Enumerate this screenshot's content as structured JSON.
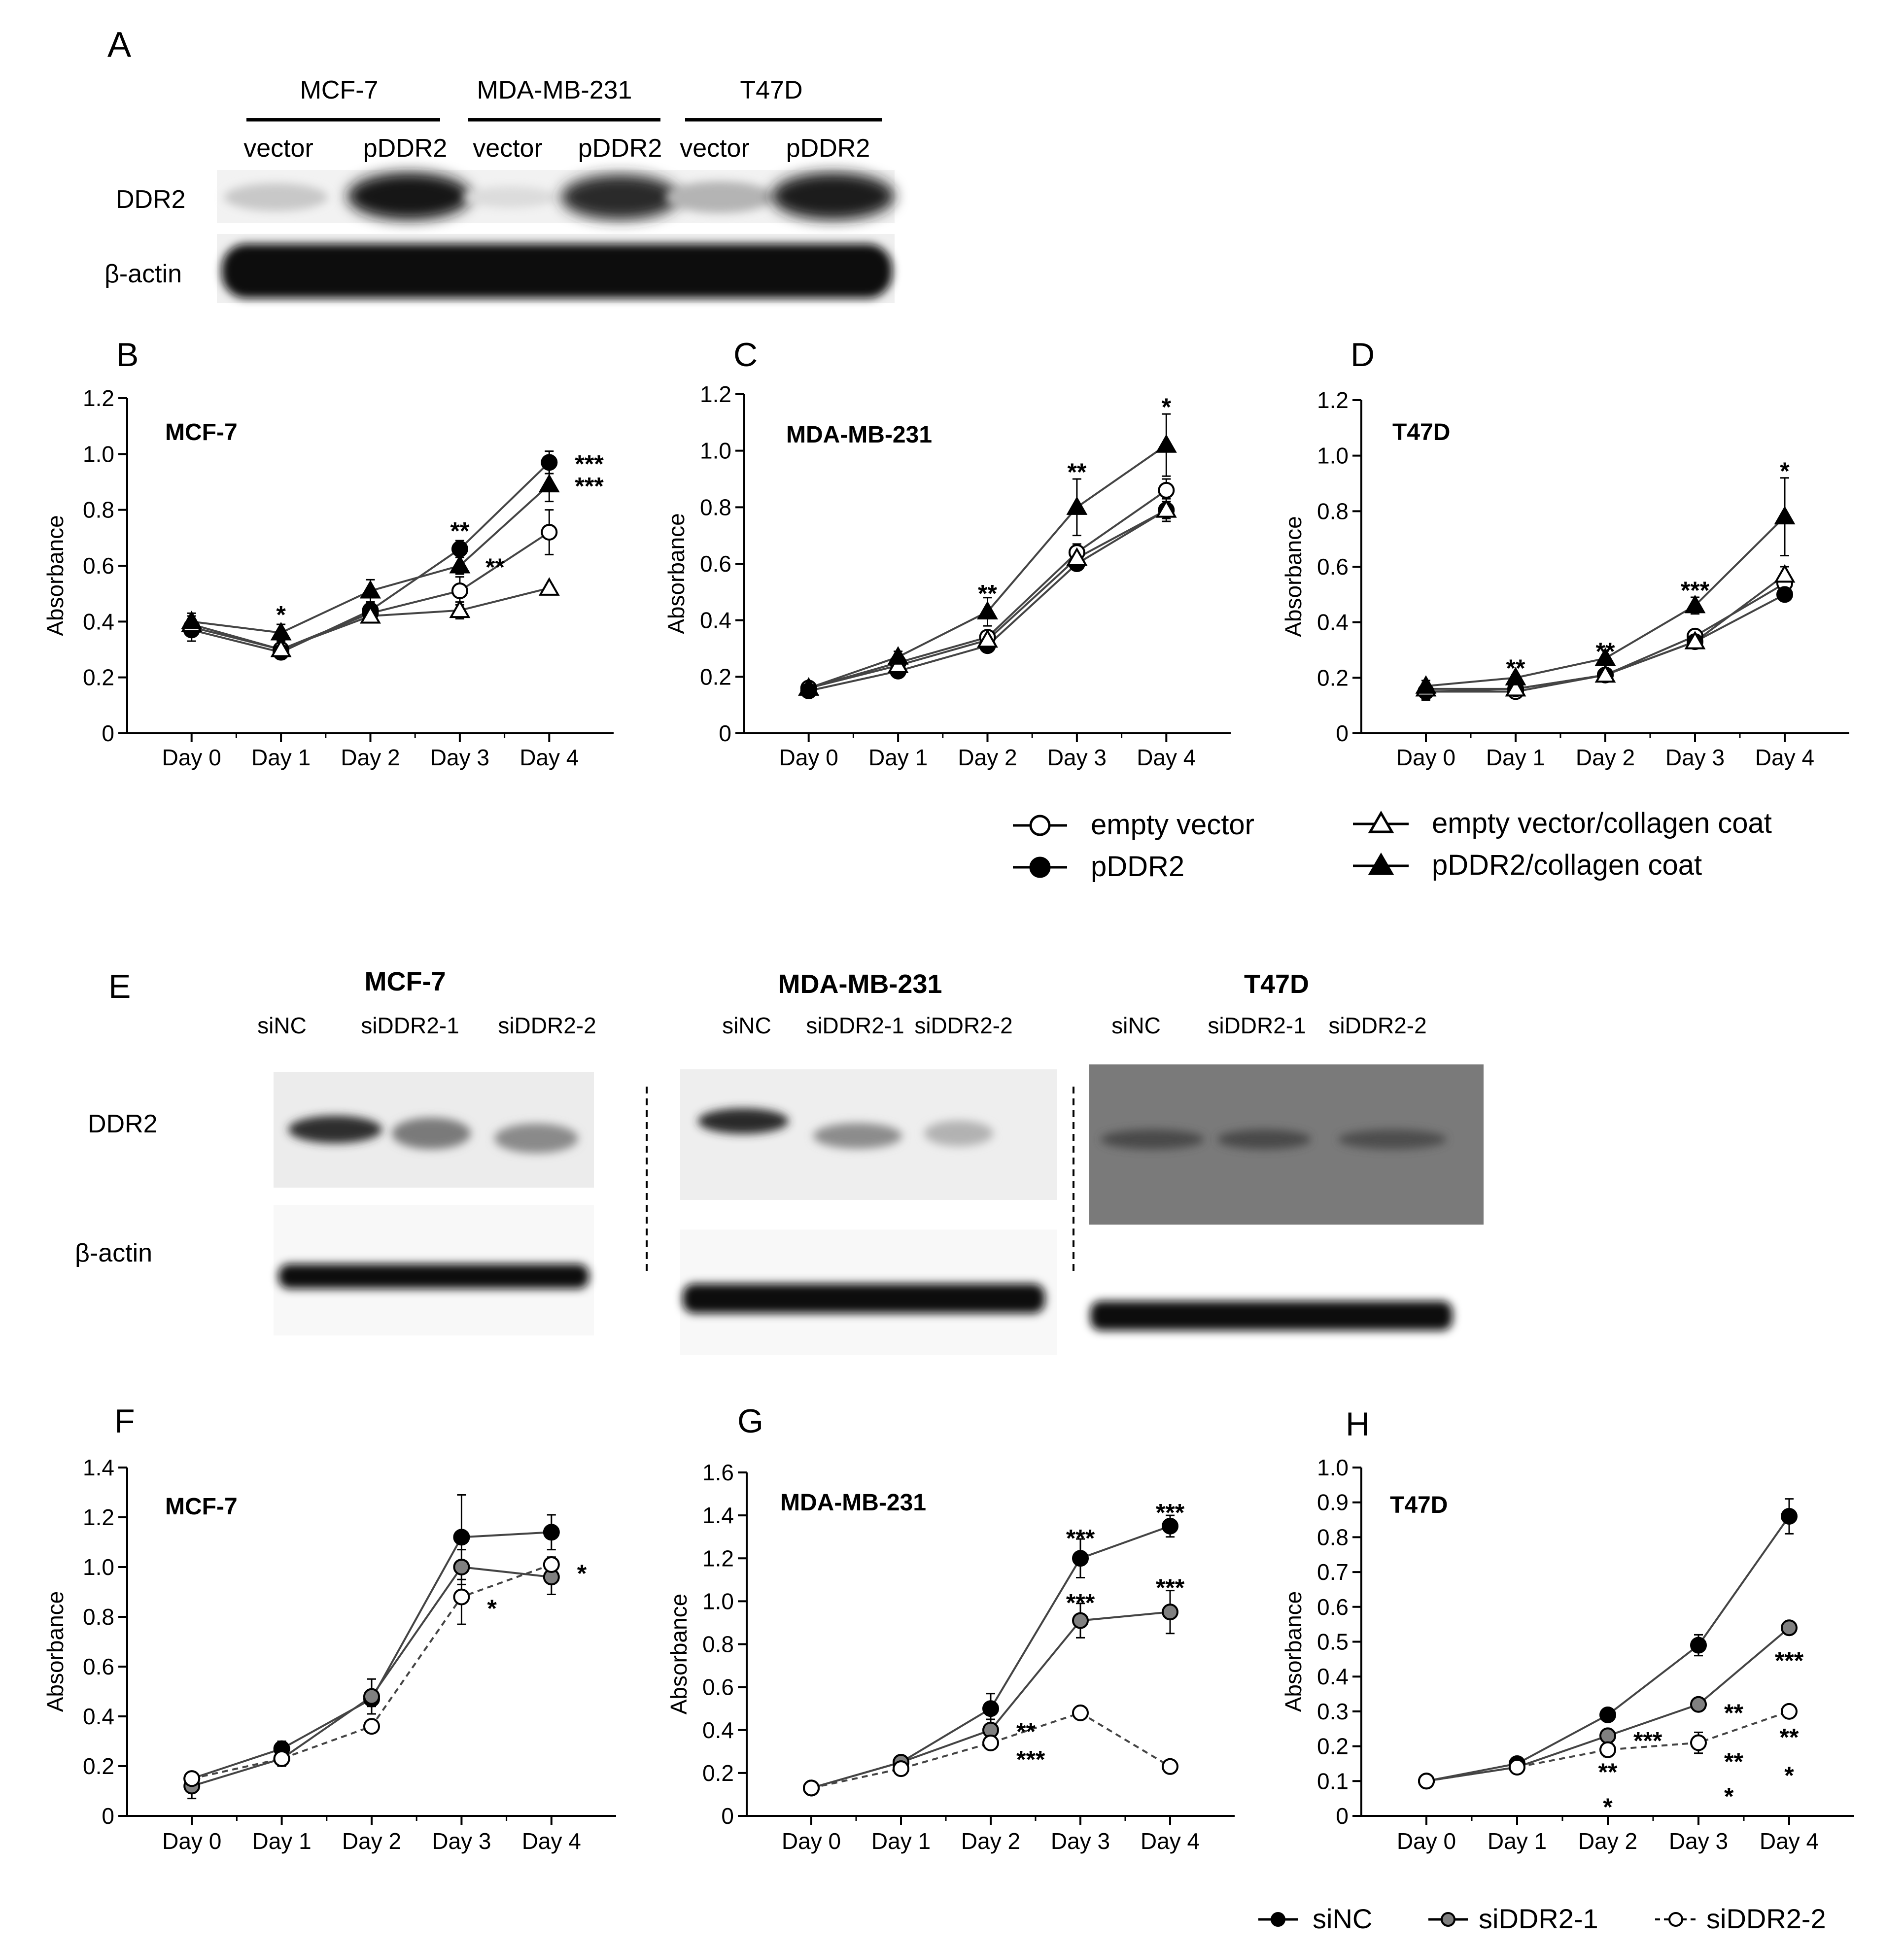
{
  "panel_labels": {
    "A": "A",
    "B": "B",
    "C": "C",
    "D": "D",
    "E": "E",
    "F": "F",
    "G": "G",
    "H": "H"
  },
  "blot_top": {
    "cell_lines": [
      "MCF-7",
      "MDA-MB-231",
      "T47D"
    ],
    "lanes": [
      "vector",
      "pDDR2",
      "vector",
      "pDDR2",
      "vector",
      "pDDR2"
    ],
    "rows": [
      "DDR2",
      "β-actin"
    ]
  },
  "blot_bottom": {
    "groups": [
      {
        "title": "MCF-7",
        "lanes": [
          "siNC",
          "siDDR2-1",
          "siDDR2-2"
        ]
      },
      {
        "title": "MDA-MB-231",
        "lanes": [
          "siNC",
          "siDDR2-1",
          "siDDR2-2"
        ]
      },
      {
        "title": "T47D",
        "lanes": [
          "siNC",
          "siDDR2-1",
          "siDDR2-2"
        ]
      }
    ],
    "rows": [
      "DDR2",
      "β-actin"
    ]
  },
  "legend_top": {
    "items": [
      {
        "name": "empty vector",
        "marker": "circle-open",
        "line": "solid"
      },
      {
        "name": "pDDR2",
        "marker": "circle-filled",
        "line": "solid"
      },
      {
        "name": "empty vector/collagen coat",
        "marker": "triangle-open",
        "line": "solid"
      },
      {
        "name": "pDDR2/collagen coat",
        "marker": "triangle-filled",
        "line": "solid"
      }
    ]
  },
  "legend_bottom": {
    "items": [
      {
        "name": "siNC",
        "marker": "circle-filled",
        "line": "solid"
      },
      {
        "name": "siDDR2-1",
        "marker": "circle-gray",
        "line": "solid"
      },
      {
        "name": "siDDR2-2",
        "marker": "circle-open",
        "line": "dashed"
      }
    ]
  },
  "chart_data": [
    {
      "id": "B",
      "type": "line",
      "title": "MCF-7",
      "ylabel": "Absorbance",
      "xlabel": "",
      "categories": [
        "Day 0",
        "Day 1",
        "Day 2",
        "Day 3",
        "Day 4"
      ],
      "ylim": [
        0,
        1.2
      ],
      "yticks": [
        "0",
        "0.2",
        "0.4",
        "0.6",
        "0.8",
        "1.0",
        "1.2"
      ],
      "series": [
        {
          "name": "empty vector",
          "marker": "circle-open",
          "values": [
            0.38,
            0.3,
            0.43,
            0.51,
            0.72
          ],
          "err": [
            0.03,
            0.02,
            0.02,
            0.05,
            0.08
          ]
        },
        {
          "name": "pDDR2",
          "marker": "circle-filled",
          "values": [
            0.37,
            0.29,
            0.44,
            0.66,
            0.97
          ],
          "err": [
            0.04,
            0.02,
            0.03,
            0.03,
            0.04
          ]
        },
        {
          "name": "empty vector/collagen coat",
          "marker": "triangle-open",
          "values": [
            0.39,
            0.3,
            0.42,
            0.44,
            0.52
          ],
          "err": [
            0.03,
            0.02,
            0.02,
            0.03,
            0.01
          ]
        },
        {
          "name": "pDDR2/collagen coat",
          "marker": "triangle-filled",
          "values": [
            0.4,
            0.36,
            0.51,
            0.6,
            0.89
          ],
          "err": [
            0.03,
            0.03,
            0.04,
            0.03,
            0.06
          ]
        }
      ],
      "annotations": [
        {
          "x": "Day 1",
          "y": 0.43,
          "text": "*"
        },
        {
          "x": "Day 3",
          "y": 0.73,
          "text": "**"
        },
        {
          "x": "Day 3",
          "y": 0.6,
          "text": "**",
          "side": "right"
        },
        {
          "x": "Day 4",
          "y": 0.97,
          "text": "***",
          "side": "right"
        },
        {
          "x": "Day 4",
          "y": 0.89,
          "text": "***",
          "side": "right"
        }
      ]
    },
    {
      "id": "C",
      "type": "line",
      "title": "MDA-MB-231",
      "ylabel": "Absorbance",
      "xlabel": "",
      "categories": [
        "Day 0",
        "Day 1",
        "Day 2",
        "Day 3",
        "Day 4"
      ],
      "ylim": [
        0,
        1.2
      ],
      "yticks": [
        "0",
        "0.2",
        "0.4",
        "0.6",
        "0.8",
        "1.0",
        "1.2"
      ],
      "series": [
        {
          "name": "empty vector",
          "marker": "circle-open",
          "values": [
            0.16,
            0.25,
            0.34,
            0.64,
            0.86
          ],
          "err": [
            0.01,
            0.02,
            0.02,
            0.03,
            0.04
          ]
        },
        {
          "name": "pDDR2",
          "marker": "circle-filled",
          "values": [
            0.15,
            0.22,
            0.31,
            0.6,
            0.79
          ],
          "err": [
            0.01,
            0.02,
            0.02,
            0.02,
            0.04
          ]
        },
        {
          "name": "empty vector/collagen coat",
          "marker": "triangle-open",
          "values": [
            0.16,
            0.24,
            0.33,
            0.62,
            0.79
          ],
          "err": [
            0.01,
            0.02,
            0.02,
            0.03,
            0.03
          ]
        },
        {
          "name": "pDDR2/collagen coat",
          "marker": "triangle-filled",
          "values": [
            0.16,
            0.27,
            0.43,
            0.8,
            1.02
          ],
          "err": [
            0.01,
            0.02,
            0.05,
            0.1,
            0.11
          ]
        }
      ],
      "annotations": [
        {
          "x": "Day 2",
          "y": 0.5,
          "text": "**"
        },
        {
          "x": "Day 3",
          "y": 0.93,
          "text": "**"
        },
        {
          "x": "Day 4",
          "y": 1.16,
          "text": "*"
        }
      ]
    },
    {
      "id": "D",
      "type": "line",
      "title": "T47D",
      "ylabel": "Absorbance",
      "xlabel": "",
      "categories": [
        "Day 0",
        "Day 1",
        "Day 2",
        "Day 3",
        "Day 4"
      ],
      "ylim": [
        0,
        1.2
      ],
      "yticks": [
        "0",
        "0.2",
        "0.4",
        "0.6",
        "0.8",
        "1.0",
        "1.2"
      ],
      "series": [
        {
          "name": "empty vector",
          "marker": "circle-open",
          "values": [
            0.15,
            0.15,
            0.21,
            0.35,
            0.54
          ],
          "err": [
            0.03,
            0.01,
            0.01,
            0.02,
            0.03
          ]
        },
        {
          "name": "pDDR2",
          "marker": "circle-filled",
          "values": [
            0.15,
            0.16,
            0.21,
            0.33,
            0.5
          ],
          "err": [
            0.03,
            0.01,
            0.01,
            0.02,
            0.02
          ]
        },
        {
          "name": "empty vector/collagen coat",
          "marker": "triangle-open",
          "values": [
            0.16,
            0.16,
            0.21,
            0.33,
            0.57
          ],
          "err": [
            0.02,
            0.01,
            0.01,
            0.02,
            0.03
          ]
        },
        {
          "name": "pDDR2/collagen coat",
          "marker": "triangle-filled",
          "values": [
            0.17,
            0.2,
            0.27,
            0.46,
            0.78
          ],
          "err": [
            0.02,
            0.01,
            0.01,
            0.03,
            0.14
          ]
        }
      ],
      "annotations": [
        {
          "x": "Day 1",
          "y": 0.24,
          "text": "**"
        },
        {
          "x": "Day 2",
          "y": 0.3,
          "text": "**"
        },
        {
          "x": "Day 3",
          "y": 0.52,
          "text": "***"
        },
        {
          "x": "Day 4",
          "y": 0.95,
          "text": "*"
        }
      ]
    },
    {
      "id": "F",
      "type": "line",
      "title": "MCF-7",
      "ylabel": "Absorbance",
      "xlabel": "",
      "categories": [
        "Day 0",
        "Day 1",
        "Day 2",
        "Day 3",
        "Day 4"
      ],
      "ylim": [
        0,
        1.4
      ],
      "yticks": [
        "0",
        "0.2",
        "0.4",
        "0.6",
        "0.8",
        "1.0",
        "1.2",
        "1.4"
      ],
      "series": [
        {
          "name": "siNC",
          "marker": "circle-filled",
          "values": [
            0.15,
            0.27,
            0.47,
            1.12,
            1.14
          ],
          "err": [
            0.02,
            0.03,
            0.03,
            0.17,
            0.07
          ]
        },
        {
          "name": "siDDR2-1",
          "marker": "circle-gray",
          "values": [
            0.12,
            0.23,
            0.48,
            1.0,
            0.96
          ],
          "err": [
            0.05,
            0.03,
            0.07,
            0.07,
            0.07
          ]
        },
        {
          "name": "siDDR2-2",
          "marker": "circle-open",
          "values": [
            0.15,
            0.23,
            0.36,
            0.88,
            1.01
          ],
          "err": [
            0.02,
            0.02,
            0.02,
            0.11,
            0.03
          ]
        }
      ],
      "annotations": [
        {
          "x": "Day 3",
          "y": 0.84,
          "text": "*",
          "side": "right"
        },
        {
          "x": "Day 4",
          "y": 0.98,
          "text": "*",
          "side": "right"
        }
      ]
    },
    {
      "id": "G",
      "type": "line",
      "title": "MDA-MB-231",
      "ylabel": "Absorbance",
      "xlabel": "",
      "categories": [
        "Day 0",
        "Day 1",
        "Day 2",
        "Day 3",
        "Day 4"
      ],
      "ylim": [
        0,
        1.6
      ],
      "yticks": [
        "0",
        "0.2",
        "0.4",
        "0.6",
        "0.8",
        "1.0",
        "1.2",
        "1.4",
        "1.6"
      ],
      "series": [
        {
          "name": "siNC",
          "marker": "circle-filled",
          "values": [
            0.13,
            0.25,
            0.5,
            1.2,
            1.35
          ],
          "err": [
            0.01,
            0.02,
            0.07,
            0.09,
            0.05
          ]
        },
        {
          "name": "siDDR2-1",
          "marker": "circle-gray",
          "values": [
            0.13,
            0.25,
            0.4,
            0.91,
            0.95
          ],
          "err": [
            0.01,
            0.02,
            0.05,
            0.08,
            0.1
          ]
        },
        {
          "name": "siDDR2-2",
          "marker": "circle-open",
          "values": [
            0.13,
            0.22,
            0.34,
            0.48,
            0.23
          ],
          "err": [
            0.01,
            0.01,
            0.02,
            0.02,
            0.01
          ]
        }
      ],
      "annotations": [
        {
          "x": "Day 2",
          "y": 0.4,
          "text": "**",
          "side": "right"
        },
        {
          "x": "Day 2",
          "y": 0.27,
          "text": "***",
          "side": "right"
        },
        {
          "x": "Day 3",
          "y": 1.3,
          "text": "***"
        },
        {
          "x": "Day 3",
          "y": 1.0,
          "text": "***"
        },
        {
          "x": "Day 4",
          "y": 1.42,
          "text": "***"
        },
        {
          "x": "Day 4",
          "y": 1.07,
          "text": "***"
        }
      ]
    },
    {
      "id": "H",
      "type": "line",
      "title": "T47D",
      "ylabel": "Absorbance",
      "xlabel": "",
      "categories": [
        "Day 0",
        "Day 1",
        "Day 2",
        "Day 3",
        "Day 4"
      ],
      "ylim": [
        0,
        1.0
      ],
      "yticks": [
        "0",
        "0.1",
        "0.2",
        "0.3",
        "0.4",
        "0.5",
        "0.6",
        "0.7",
        "0.8",
        "0.9",
        "1.0"
      ],
      "series": [
        {
          "name": "siNC",
          "marker": "circle-filled",
          "values": [
            0.1,
            0.15,
            0.29,
            0.49,
            0.86
          ],
          "err": [
            0.01,
            0.01,
            0.01,
            0.03,
            0.05
          ]
        },
        {
          "name": "siDDR2-1",
          "marker": "circle-gray",
          "values": [
            0.1,
            0.14,
            0.23,
            0.32,
            0.54
          ],
          "err": [
            0.01,
            0.01,
            0.01,
            0.01,
            0.01
          ]
        },
        {
          "name": "siDDR2-2",
          "marker": "circle-open",
          "values": [
            0.1,
            0.14,
            0.19,
            0.21,
            0.3
          ],
          "err": [
            0.01,
            0.01,
            0.02,
            0.03,
            0.01
          ]
        }
      ],
      "annotations": [
        {
          "x": "Day 2",
          "y": 0.22,
          "text": "***",
          "side": "right"
        },
        {
          "x": "Day 2",
          "y": 0.13,
          "text": "**"
        },
        {
          "x": "Day 2",
          "y": 0.03,
          "text": "*"
        },
        {
          "x": "Day 3",
          "y": 0.3,
          "text": "**",
          "side": "right"
        },
        {
          "x": "Day 3",
          "y": 0.16,
          "text": "**",
          "side": "right"
        },
        {
          "x": "Day 3",
          "y": 0.06,
          "text": "*",
          "side": "right"
        },
        {
          "x": "Day 4",
          "y": 0.45,
          "text": "***"
        },
        {
          "x": "Day 4",
          "y": 0.23,
          "text": "**"
        },
        {
          "x": "Day 4",
          "y": 0.12,
          "text": "*"
        }
      ]
    }
  ]
}
